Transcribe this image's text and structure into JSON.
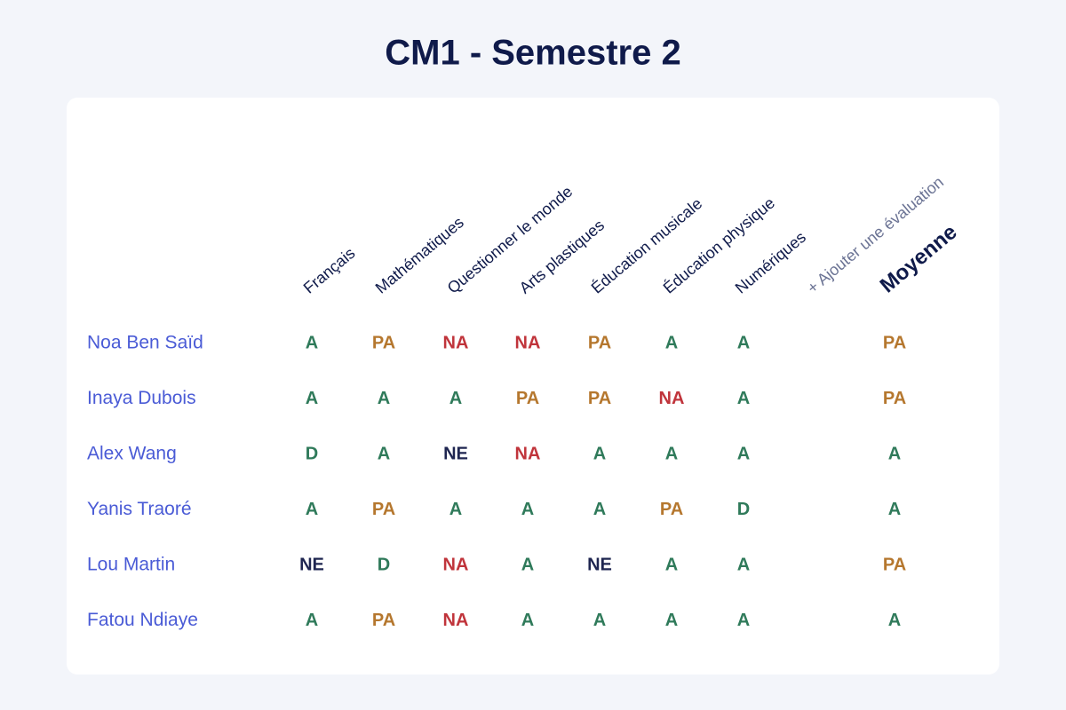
{
  "header": {
    "title": "CM1 - Semestre 2"
  },
  "table": {
    "columns": [
      "Français",
      "Mathématiques",
      "Questionner le monde",
      "Arts plastiques",
      "Éducation musicale",
      "Éducation physique",
      "Numériques",
      "+ Ajouter une évaluation",
      "Moyenne"
    ],
    "rows": [
      {
        "name": "Noa Ben Saïd",
        "grades": [
          "A",
          "PA",
          "NA",
          "NA",
          "PA",
          "A",
          "A"
        ],
        "average": "PA"
      },
      {
        "name": "Inaya Dubois",
        "grades": [
          "A",
          "A",
          "A",
          "PA",
          "PA",
          "NA",
          "A"
        ],
        "average": "PA"
      },
      {
        "name": "Alex Wang",
        "grades": [
          "D",
          "A",
          "NE",
          "NA",
          "A",
          "A",
          "A"
        ],
        "average": "A"
      },
      {
        "name": "Yanis Traoré",
        "grades": [
          "A",
          "PA",
          "A",
          "A",
          "A",
          "PA",
          "D"
        ],
        "average": "A"
      },
      {
        "name": "Lou Martin",
        "grades": [
          "NE",
          "D",
          "NA",
          "A",
          "NE",
          "A",
          "A"
        ],
        "average": "PA"
      },
      {
        "name": "Fatou Ndiaye",
        "grades": [
          "A",
          "PA",
          "NA",
          "A",
          "A",
          "A",
          "A"
        ],
        "average": "A"
      }
    ],
    "grade_colors": {
      "A": "#2f7a5a",
      "D": "#2f7a5a",
      "PA": "#b5772e",
      "NA": "#c0343b",
      "NE": "#1e2550"
    }
  }
}
